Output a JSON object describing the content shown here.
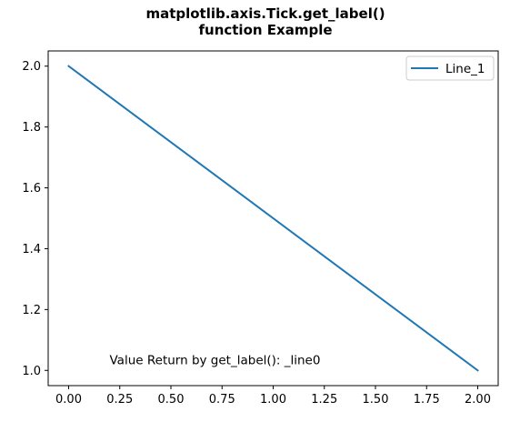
{
  "chart_data": {
    "type": "line",
    "title_lines": [
      "matplotlib.axis.Tick.get_label()",
      "function Example"
    ],
    "xlabel": "",
    "ylabel": "",
    "x": [
      0.0,
      2.0
    ],
    "series": [
      {
        "name": "Line_1",
        "values": [
          2.0,
          1.0
        ],
        "color": "#1f77b4"
      }
    ],
    "xlim": [
      -0.1,
      2.1
    ],
    "ylim": [
      0.95,
      2.05
    ],
    "xticks": [
      0.0,
      0.25,
      0.5,
      0.75,
      1.0,
      1.25,
      1.5,
      1.75,
      2.0
    ],
    "xtick_labels": [
      "0.00",
      "0.25",
      "0.50",
      "0.75",
      "1.00",
      "1.25",
      "1.50",
      "1.75",
      "2.00"
    ],
    "yticks": [
      1.0,
      1.2,
      1.4,
      1.6,
      1.8,
      2.0
    ],
    "ytick_labels": [
      "1.0",
      "1.2",
      "1.4",
      "1.6",
      "1.8",
      "2.0"
    ],
    "grid": false,
    "legend_position": "top-right",
    "annotation": {
      "text": "Value Return by get_label(): _line0",
      "x": 0.2,
      "y": 1.02
    }
  }
}
